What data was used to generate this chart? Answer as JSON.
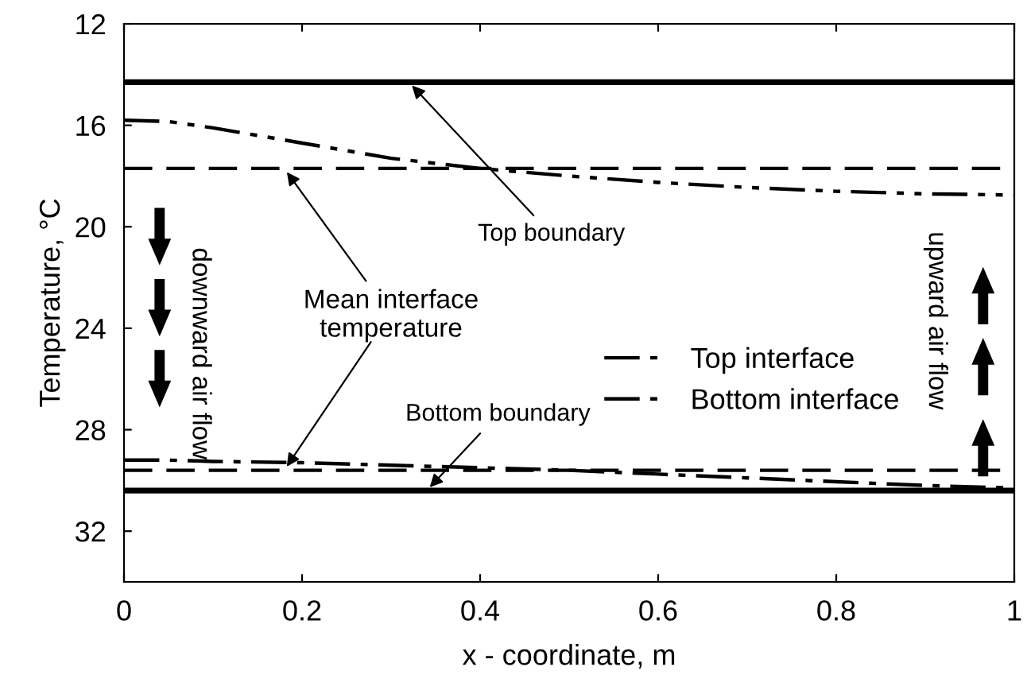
{
  "chart_data": {
    "type": "line",
    "xlabel": "x - coordinate, m",
    "ylabel": "Temperature, °C",
    "xlim": [
      0,
      1
    ],
    "xticks": [
      0,
      0.2,
      0.4,
      0.6,
      0.8,
      1
    ],
    "ylim": [
      34,
      12
    ],
    "yticks": [
      12,
      16,
      20,
      24,
      28,
      32
    ],
    "x": [
      0,
      0.05,
      0.1,
      0.2,
      0.3,
      0.4,
      0.5,
      0.6,
      0.7,
      0.8,
      0.9,
      1
    ],
    "series": [
      {
        "name": "Top interface",
        "color": "#000000",
        "line_style": "dashdotdot",
        "values": [
          15.8,
          15.85,
          16.1,
          16.7,
          17.3,
          17.7,
          18.0,
          18.25,
          18.45,
          18.6,
          18.7,
          18.75
        ]
      },
      {
        "name": "Bottom interface",
        "color": "#000000",
        "line_style": "dashdot",
        "values": [
          29.2,
          29.2,
          29.25,
          29.3,
          29.4,
          29.5,
          29.6,
          29.75,
          29.9,
          30.05,
          30.2,
          30.3
        ]
      }
    ],
    "ref_lines": [
      {
        "axis": "y",
        "value": 14.3,
        "label": null,
        "color": "#000000",
        "line_style": "solid"
      },
      {
        "axis": "y",
        "value": 30.4,
        "label": null,
        "color": "#000000",
        "line_style": "solid"
      },
      {
        "axis": "y",
        "value": 17.7,
        "label": null,
        "color": "#000000",
        "line_style": "dashed"
      },
      {
        "axis": "y",
        "value": 29.6,
        "label": null,
        "color": "#000000",
        "line_style": "dashed"
      }
    ],
    "annotations": [
      {
        "text": "Top boundary",
        "x": 0.32,
        "y": 14.3
      },
      {
        "text": "Mean interface\ntemperature",
        "x": 0.18,
        "y": 17.7
      },
      {
        "text": "Bottom boundary",
        "x": 0.34,
        "y": 30.4
      },
      "downward air flow",
      "upward air flow"
    ],
    "legend": "right",
    "grid": false,
    "marker": "none"
  }
}
